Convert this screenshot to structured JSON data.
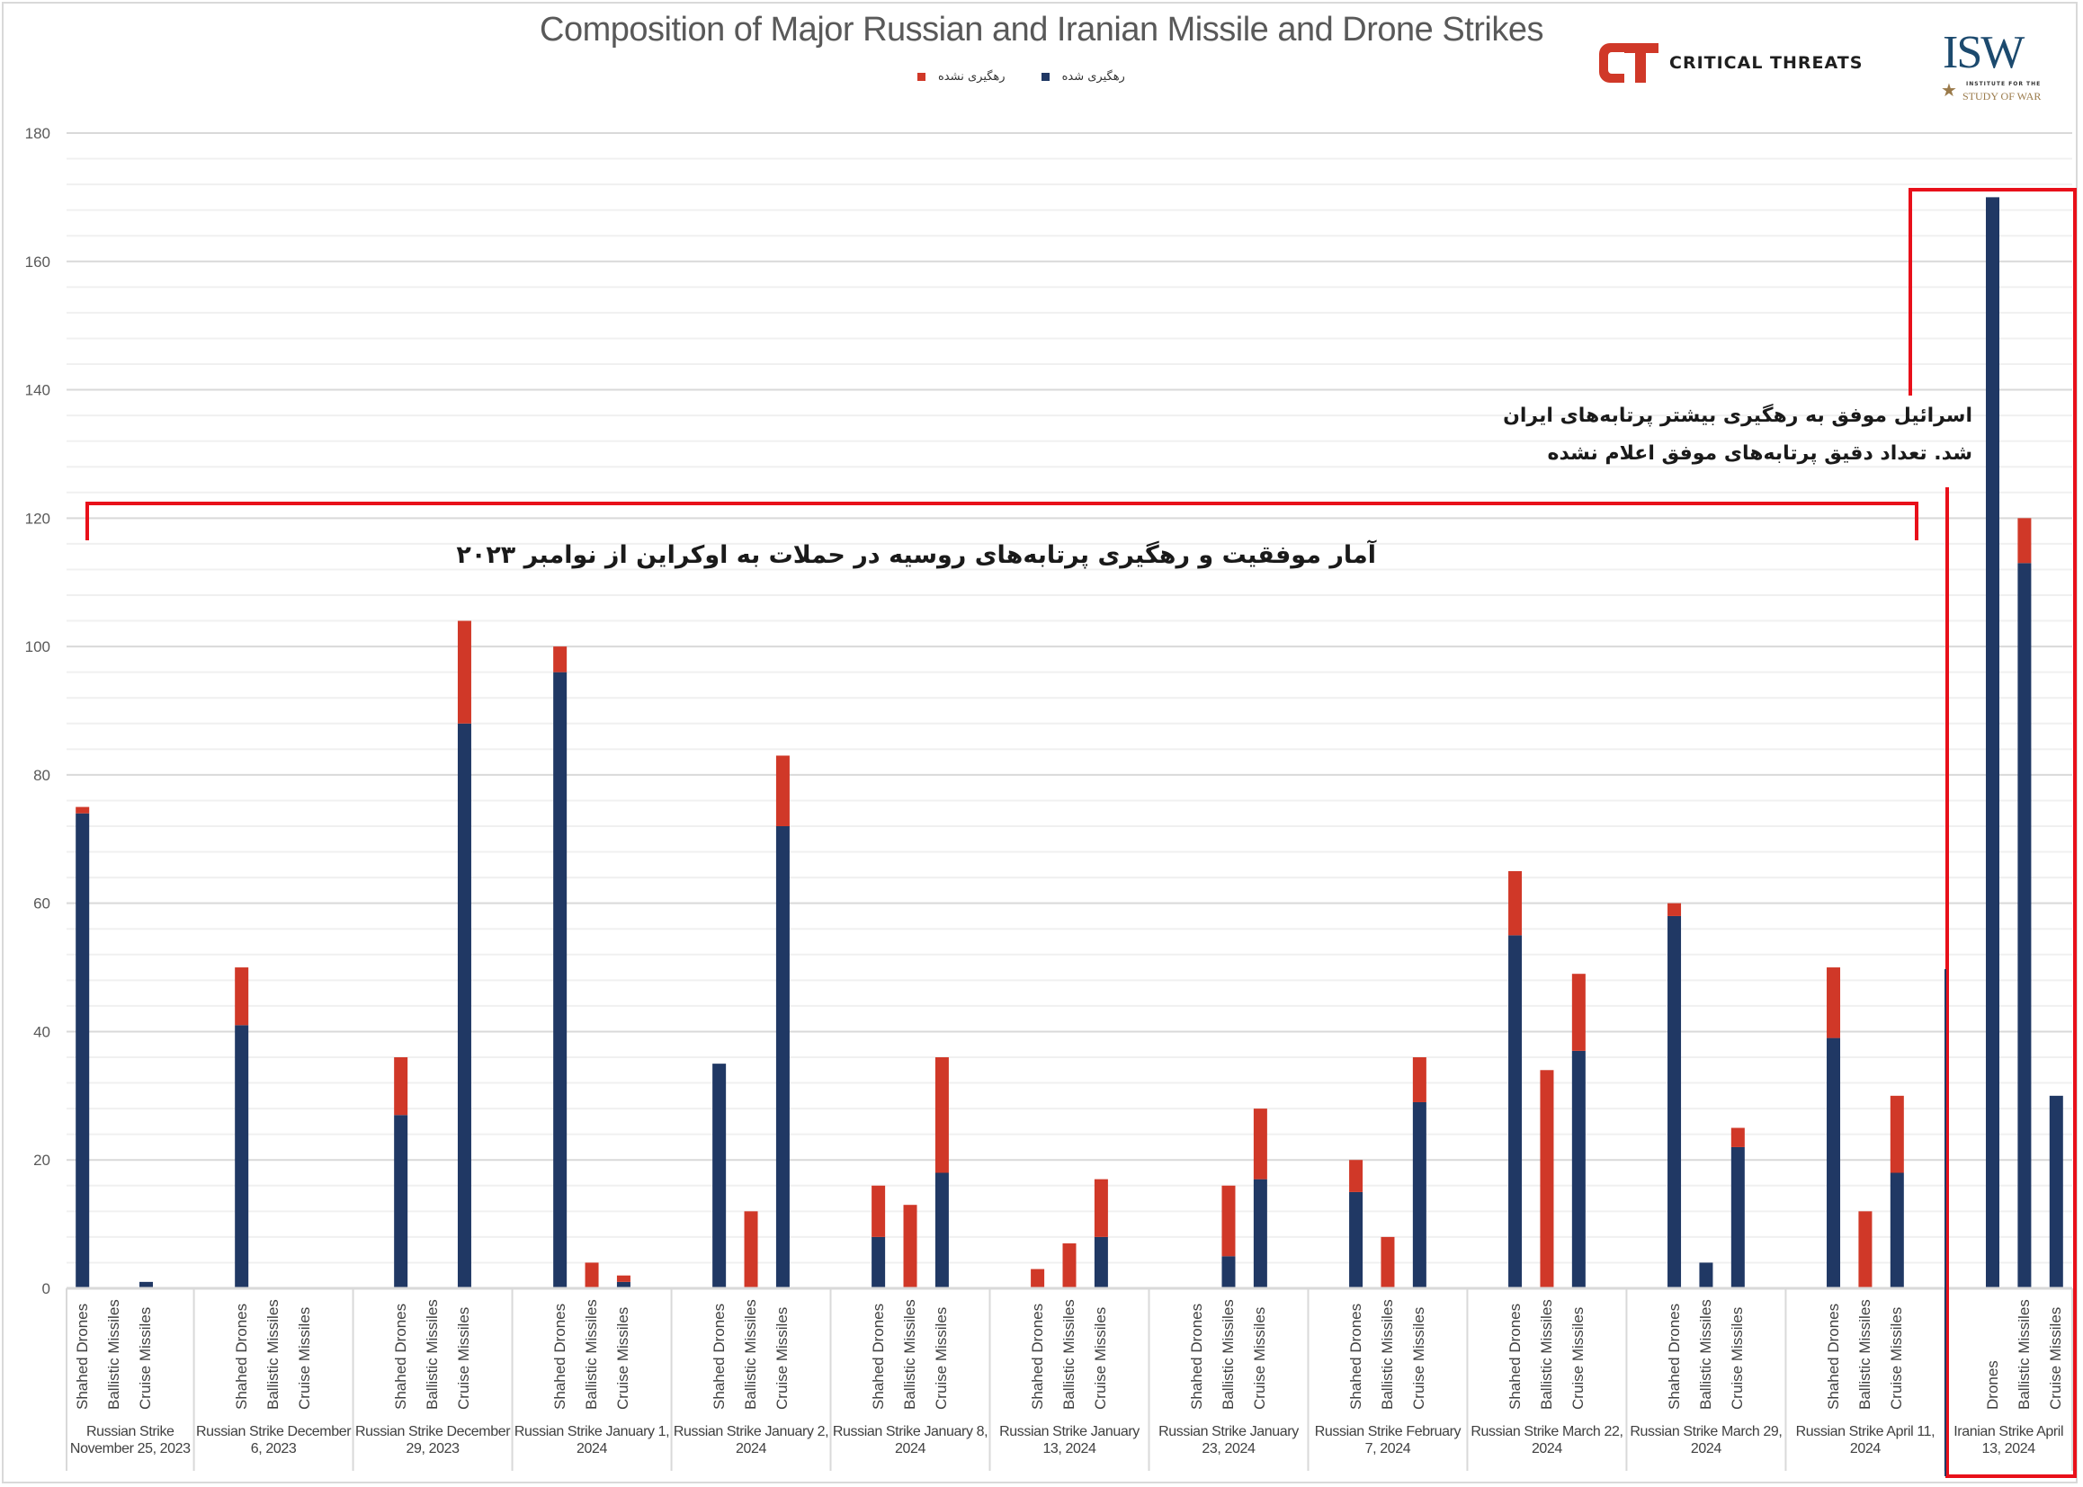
{
  "title": "Composition of Major Russian and Iranian Missile and Drone Strikes",
  "legend": [
    {
      "label": "رهگیری شده",
      "color": "#203864"
    },
    {
      "label": "رهگیری نشده",
      "color": "#d03828"
    }
  ],
  "logos": {
    "ct": {
      "mark": "CT",
      "text": "CRITICAL THREATS"
    },
    "isw": {
      "mark": "ISW",
      "line1": "INSTITUTE FOR THE",
      "line2": "STUDY OF WAR"
    }
  },
  "annotations": {
    "russia": "آمار موفقیت و رهگیری پرتابه‌های روسیه در حملات به اوکراین از نوامبر ۲۰۲۳",
    "iran_line1": "اسرائیل موفق به رهگیری بیشتر پرتابه‌های ایران",
    "iran_line2": "شد. تعداد دقیق پرتابه‌های موفق اعلام نشده",
    "accent_color": "#e8101a"
  },
  "chart_data": {
    "type": "bar",
    "stacked": true,
    "title": "Composition of Major Russian and Iranian Missile and Drone Strikes",
    "xlabel": "",
    "ylabel": "",
    "ylim": [
      0,
      180
    ],
    "yticks": [
      0,
      20,
      40,
      60,
      80,
      100,
      120,
      140,
      160,
      180
    ],
    "grid": true,
    "legend_position": "top-center",
    "series_names": [
      "رهگیری شده",
      "رهگیری نشده"
    ],
    "series_colors": [
      "#203864",
      "#d03828"
    ],
    "groups": [
      {
        "label": "Russian Strike November 25, 2023",
        "categories": [
          "Shahed Drones",
          "Ballistic Missiles",
          "Cruise Missiles"
        ],
        "intercepted": [
          74,
          0,
          1
        ],
        "not_intercepted": [
          1,
          0,
          0
        ]
      },
      {
        "label": "Russian Strike December 6, 2023",
        "categories": [
          "Shahed Drones",
          "Ballistic Missiles",
          "Cruise Missiles"
        ],
        "intercepted": [
          41,
          0,
          0
        ],
        "not_intercepted": [
          9,
          0,
          0
        ]
      },
      {
        "label": "Russian Strike December 29, 2023",
        "categories": [
          "Shahed Drones",
          "Ballistic Missiles",
          "Cruise Missiles"
        ],
        "intercepted": [
          27,
          0,
          88
        ],
        "not_intercepted": [
          9,
          0,
          16
        ]
      },
      {
        "label": "Russian Strike January 1, 2024",
        "categories": [
          "Shahed Drones",
          "Ballistic Missiles",
          "Cruise Missiles"
        ],
        "intercepted": [
          96,
          0,
          1
        ],
        "not_intercepted": [
          4,
          4,
          1
        ]
      },
      {
        "label": "Russian Strike January 2, 2024",
        "categories": [
          "Shahed Drones",
          "Ballistic Missiles",
          "Cruise Missiles"
        ],
        "intercepted": [
          35,
          0,
          72
        ],
        "not_intercepted": [
          0,
          12,
          11
        ]
      },
      {
        "label": "Russian Strike January 8, 2024",
        "categories": [
          "Shahed Drones",
          "Ballistic Missiles",
          "Cruise Missiles"
        ],
        "intercepted": [
          8,
          0,
          18
        ],
        "not_intercepted": [
          8,
          13,
          18
        ]
      },
      {
        "label": "Russian Strike January 13, 2024",
        "categories": [
          "Shahed Drones",
          "Ballistic Missiles",
          "Cruise Missiles"
        ],
        "intercepted": [
          0,
          0,
          8
        ],
        "not_intercepted": [
          3,
          7,
          9
        ]
      },
      {
        "label": "Russian Strike January 23, 2024",
        "categories": [
          "Shahed Drones",
          "Ballistic Missiles",
          "Cruise Missiles"
        ],
        "intercepted": [
          0,
          5,
          17
        ],
        "not_intercepted": [
          0,
          11,
          11
        ]
      },
      {
        "label": "Russian Strike February 7, 2024",
        "categories": [
          "Shahed Drones",
          "Ballistic Missiles",
          "Cruise Missiles"
        ],
        "intercepted": [
          15,
          0,
          29
        ],
        "not_intercepted": [
          5,
          8,
          7
        ]
      },
      {
        "label": "Russian Strike March 22, 2024",
        "categories": [
          "Shahed Drones",
          "Ballistic Missiles",
          "Cruise Missiles"
        ],
        "intercepted": [
          55,
          0,
          37
        ],
        "not_intercepted": [
          10,
          34,
          12
        ]
      },
      {
        "label": "Russian Strike March 29, 2024",
        "categories": [
          "Shahed Drones",
          "Ballistic Missiles",
          "Cruise Missiles"
        ],
        "intercepted": [
          58,
          4,
          22
        ],
        "not_intercepted": [
          2,
          0,
          3
        ]
      },
      {
        "label": "Russian Strike April 11, 2024",
        "categories": [
          "Shahed Drones",
          "Ballistic Missiles",
          "Cruise Missiles"
        ],
        "intercepted": [
          39,
          0,
          18
        ],
        "not_intercepted": [
          11,
          12,
          12
        ]
      },
      {
        "label": "Iranian Strike April 13, 2024",
        "categories": [
          "Drones",
          "Ballistic Missiles",
          "Cruise Missiles"
        ],
        "intercepted": [
          170,
          113,
          30
        ],
        "not_intercepted": [
          0,
          7,
          0
        ]
      }
    ]
  }
}
